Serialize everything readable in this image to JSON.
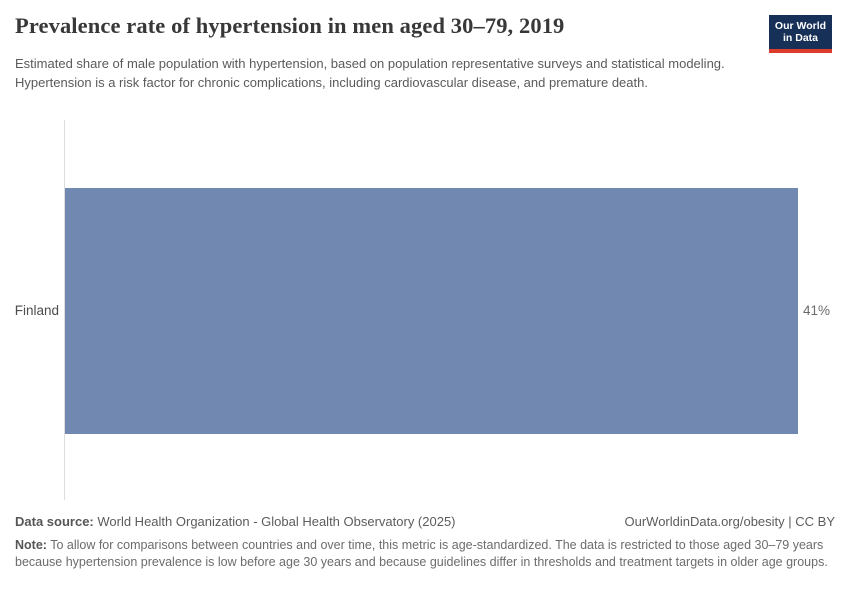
{
  "header": {
    "title": "Prevalence rate of hypertension in men aged 30–79, 2019",
    "subtitle": "Estimated share of male population with hypertension, based on population representative surveys and statistical modeling. Hypertension is a risk factor for chronic complications, including cardiovascular disease, and premature death.",
    "logo": {
      "line1": "Our World",
      "line2": "in Data",
      "bg_color": "#163057",
      "accent_color": "#dc3c2b"
    }
  },
  "chart_data": {
    "type": "bar",
    "orientation": "horizontal",
    "title": "Prevalence rate of hypertension in men aged 30–79, 2019",
    "categories": [
      "Finland"
    ],
    "values": [
      41
    ],
    "value_labels": [
      "41%"
    ],
    "unit": "%",
    "xlim": [
      0,
      41
    ],
    "grid": false,
    "legend": false,
    "bar_color": "#7188b0",
    "axis_color": "#dddddd"
  },
  "footer": {
    "datasource_label": "Data source:",
    "datasource_text": " World Health Organization - Global Health Observatory (2025)",
    "link_text": "OurWorldinData.org/obesity | CC BY",
    "note_label": "Note:",
    "note_text": " To allow for comparisons between countries and over time, this metric is age-standardized. The data is restricted to those aged 30–79 years because hypertension prevalence is low before age 30 years and because guidelines differ in thresholds and treatment targets in older age groups."
  }
}
